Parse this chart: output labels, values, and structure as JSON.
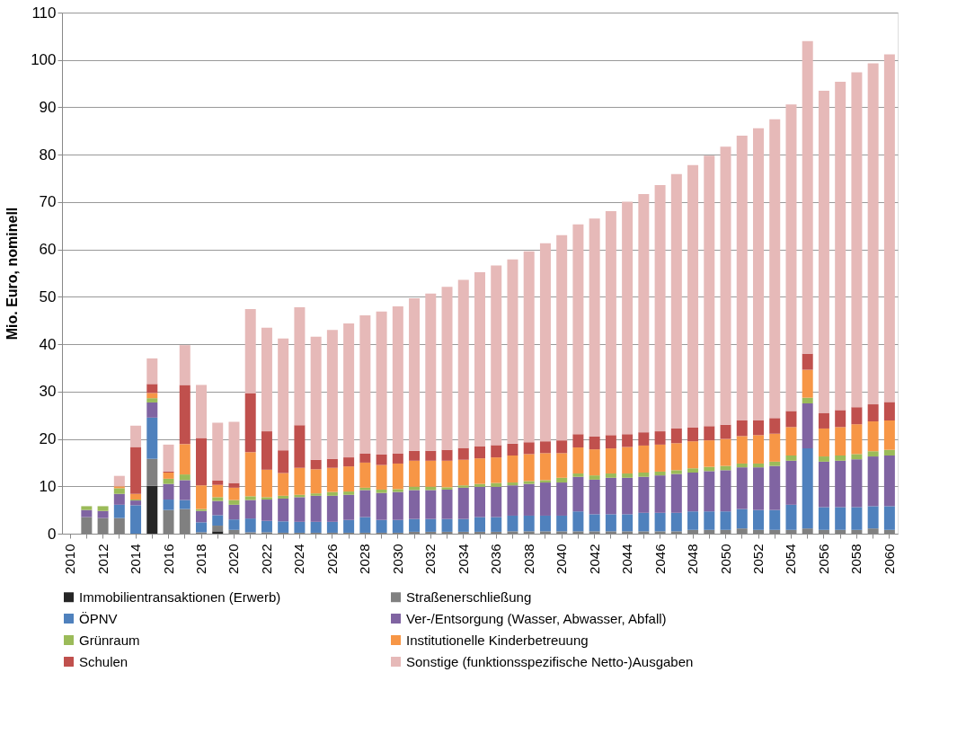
{
  "chart_data": {
    "type": "bar",
    "stacked": true,
    "ylabel": "Mio. Euro, nominell",
    "categories": [
      "2010",
      null,
      "2012",
      null,
      "2014",
      null,
      "2016",
      null,
      "2018",
      null,
      "2020",
      null,
      "2022",
      null,
      "2024",
      null,
      "2026",
      null,
      "2028",
      null,
      "2030",
      null,
      "2032",
      null,
      "2034",
      null,
      "2036",
      null,
      "2038",
      null,
      "2040",
      null,
      "2042",
      null,
      "2044",
      null,
      "2046",
      null,
      "2048",
      null,
      "2050",
      null,
      "2052",
      null,
      "2054",
      null,
      "2056",
      null,
      "2058",
      null,
      "2060"
    ],
    "ylim": [
      0,
      110
    ],
    "yticks": [
      0,
      10,
      20,
      30,
      40,
      50,
      60,
      70,
      80,
      90,
      100,
      110
    ],
    "grid": "y",
    "legend": "bottom",
    "series": [
      {
        "name": "Immobilientransaktionen (Erwerb)",
        "color": "#262626",
        "values": [
          0,
          0,
          0,
          0,
          0,
          10.1,
          0,
          0,
          0,
          0.5,
          0,
          0,
          0,
          0,
          0,
          0,
          0,
          0,
          0,
          0,
          0,
          0,
          0,
          0,
          0,
          0,
          0,
          0,
          0,
          0,
          0,
          0,
          0,
          0,
          0,
          0,
          0,
          0,
          0,
          0,
          0,
          0,
          0,
          0,
          0,
          0,
          0,
          0,
          0,
          0,
          0
        ]
      },
      {
        "name": "Straßenerschließung",
        "color": "#808080",
        "values": [
          0,
          3.5,
          3.3,
          3.3,
          0,
          5.7,
          5.0,
          5.2,
          0.3,
          1.2,
          0.8,
          0.3,
          0.3,
          0.2,
          0.2,
          0.2,
          0.2,
          0.2,
          0.2,
          0.2,
          0.2,
          0.4,
          0.4,
          0.4,
          0.4,
          0.4,
          0.4,
          0.5,
          0.5,
          0.5,
          0.5,
          0.5,
          0.5,
          0.5,
          0.5,
          0.5,
          0.5,
          0.5,
          0.8,
          0.8,
          0.8,
          1.1,
          0.8,
          0.8,
          0.8,
          1.1,
          0.8,
          0.8,
          0.8,
          1.1,
          0.8
        ]
      },
      {
        "name": "ÖPNV",
        "color": "#4f81bd",
        "values": [
          0,
          0,
          0,
          2.8,
          6.0,
          8.7,
          2.2,
          1.9,
          2.1,
          2.2,
          2.2,
          2.9,
          2.4,
          2.4,
          2.3,
          2.3,
          2.3,
          2.7,
          3.3,
          2.7,
          2.7,
          2.7,
          2.7,
          2.7,
          2.7,
          3.1,
          3.1,
          3.3,
          3.3,
          3.3,
          3.3,
          4.2,
          3.6,
          3.6,
          3.6,
          3.9,
          3.9,
          3.9,
          3.9,
          3.9,
          3.9,
          4.1,
          4.2,
          4.2,
          5.3,
          16.9,
          4.8,
          4.8,
          4.8,
          4.7,
          5.0
        ]
      },
      {
        "name": "Ver-/Entsorgung (Wasser, Abwasser, Abfall)",
        "color": "#8064a2",
        "values": [
          0,
          1.5,
          1.5,
          2.3,
          1.0,
          3.2,
          3.3,
          4.2,
          2.4,
          3.0,
          3.1,
          3.9,
          4.5,
          4.8,
          5.2,
          5.5,
          5.5,
          5.3,
          5.7,
          5.7,
          5.9,
          6.1,
          6.1,
          6.2,
          6.6,
          6.4,
          6.4,
          6.4,
          6.7,
          7.0,
          7.0,
          7.3,
          7.3,
          7.7,
          7.7,
          7.6,
          7.9,
          8.2,
          8.2,
          8.5,
          8.7,
          8.8,
          9.0,
          9.3,
          9.3,
          9.5,
          9.6,
          9.8,
          10.1,
          10.5,
          10.7
        ]
      },
      {
        "name": "Grünraum",
        "color": "#9bbb59",
        "values": [
          0,
          0.8,
          1.0,
          1.2,
          0.2,
          0.9,
          1.1,
          1.2,
          0.4,
          0.8,
          1.0,
          0.8,
          0.5,
          0.6,
          0.5,
          0.5,
          0.8,
          0.7,
          0.5,
          0.7,
          0.6,
          0.7,
          0.7,
          0.5,
          0.5,
          0.6,
          0.8,
          0.6,
          0.6,
          0.5,
          1.0,
          0.7,
          0.9,
          0.9,
          0.9,
          0.9,
          0.8,
          0.8,
          0.9,
          0.9,
          0.9,
          0.8,
          0.8,
          0.9,
          1.1,
          1.2,
          1.1,
          1.1,
          1.1,
          1.1,
          1.2
        ]
      },
      {
        "name": "Institutionelle Kinderbetreuung",
        "color": "#f79646",
        "values": [
          0,
          0,
          0,
          0.4,
          1.2,
          1.1,
          1.3,
          6.4,
          5.0,
          2.6,
          2.6,
          9.3,
          5.8,
          4.8,
          5.7,
          5.1,
          5.1,
          5.3,
          5.3,
          5.2,
          5.4,
          5.5,
          5.5,
          5.6,
          5.4,
          5.4,
          5.4,
          5.7,
          5.7,
          5.7,
          5.2,
          5.5,
          5.5,
          5.3,
          5.6,
          5.7,
          5.7,
          5.7,
          5.7,
          5.6,
          5.7,
          5.8,
          6.0,
          5.9,
          6.0,
          5.9,
          5.9,
          6.0,
          6.3,
          6.3,
          6.2
        ]
      },
      {
        "name": "Schulen",
        "color": "#c0504d",
        "values": [
          0,
          0,
          0,
          0,
          9.9,
          1.9,
          0.2,
          12.5,
          10.0,
          0.9,
          1.0,
          12.5,
          8.1,
          4.8,
          9.0,
          2.0,
          1.9,
          1.9,
          1.9,
          2.2,
          2.1,
          2.1,
          2.1,
          2.3,
          2.5,
          2.5,
          2.6,
          2.5,
          2.5,
          2.5,
          2.7,
          2.8,
          2.7,
          2.8,
          2.7,
          2.8,
          2.8,
          3.1,
          2.9,
          3.0,
          3.0,
          3.3,
          3.1,
          3.3,
          3.4,
          3.4,
          3.3,
          3.6,
          3.6,
          3.6,
          3.9
        ]
      },
      {
        "name": "Sonstige (funktionsspezifische Netto-)Ausgaben",
        "color": "#e6b9b8",
        "values": [
          0,
          0,
          0,
          2.2,
          4.5,
          5.4,
          5.7,
          8.4,
          11.2,
          12.2,
          12.9,
          17.7,
          21.9,
          23.6,
          24.9,
          26.0,
          27.2,
          28.3,
          29.2,
          30.2,
          31.1,
          32.2,
          33.2,
          34.4,
          35.5,
          36.8,
          37.9,
          38.9,
          40.3,
          41.8,
          43.3,
          44.3,
          46.0,
          47.3,
          49.1,
          50.3,
          52.0,
          53.7,
          55.4,
          57.1,
          58.7,
          60.1,
          61.7,
          63.1,
          64.7,
          66.0,
          68.0,
          69.3,
          70.7,
          72.0,
          73.4
        ]
      }
    ]
  }
}
